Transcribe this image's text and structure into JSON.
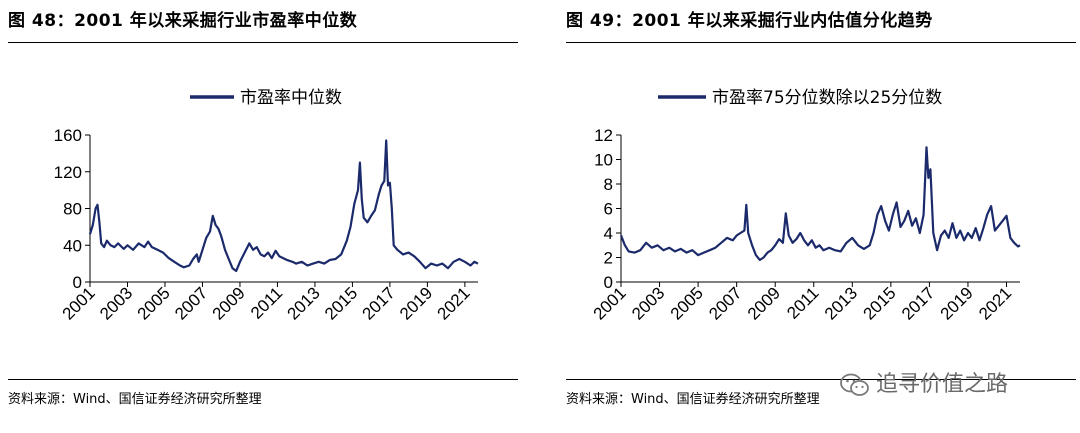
{
  "panels": [
    {
      "title": "图 48：2001 年以来采掘行业市盈率中位数",
      "source": "资料来源：Wind、国信证券经济研究所整理"
    },
    {
      "title": "图 49：2001 年以来采掘行业内估值分化趋势",
      "source": "资料来源：Wind、国信证券经济研究所整理"
    }
  ],
  "watermark": "追寻价值之路",
  "colors": {
    "series": "#1b2a6b",
    "text": "#000000"
  },
  "chart_data": [
    {
      "type": "line",
      "legend": [
        "市盈率中位数"
      ],
      "legend_position": "top-center",
      "grid": false,
      "xlim": [
        2001,
        2021.7
      ],
      "ylim": [
        0,
        160
      ],
      "yticks": [
        0,
        40,
        80,
        120,
        160
      ],
      "xticks": [
        "2001",
        "2003",
        "2005",
        "2007",
        "2009",
        "2011",
        "2013",
        "2015",
        "2017",
        "2019",
        "2021"
      ],
      "series": [
        {
          "name": "市盈率中位数",
          "points": [
            [
              2001.0,
              52
            ],
            [
              2001.15,
              62
            ],
            [
              2001.3,
              80
            ],
            [
              2001.4,
              84
            ],
            [
              2001.5,
              65
            ],
            [
              2001.6,
              42
            ],
            [
              2001.75,
              38
            ],
            [
              2001.9,
              45
            ],
            [
              2002.1,
              40
            ],
            [
              2002.3,
              38
            ],
            [
              2002.5,
              42
            ],
            [
              2002.8,
              36
            ],
            [
              2003.0,
              40
            ],
            [
              2003.3,
              35
            ],
            [
              2003.6,
              42
            ],
            [
              2003.9,
              38
            ],
            [
              2004.1,
              44
            ],
            [
              2004.3,
              38
            ],
            [
              2004.6,
              35
            ],
            [
              2004.9,
              32
            ],
            [
              2005.2,
              26
            ],
            [
              2005.5,
              22
            ],
            [
              2005.8,
              18
            ],
            [
              2006.0,
              16
            ],
            [
              2006.3,
              18
            ],
            [
              2006.5,
              25
            ],
            [
              2006.7,
              30
            ],
            [
              2006.8,
              22
            ],
            [
              2007.0,
              35
            ],
            [
              2007.2,
              48
            ],
            [
              2007.4,
              55
            ],
            [
              2007.55,
              72
            ],
            [
              2007.7,
              62
            ],
            [
              2007.85,
              58
            ],
            [
              2008.0,
              50
            ],
            [
              2008.2,
              35
            ],
            [
              2008.4,
              25
            ],
            [
              2008.6,
              15
            ],
            [
              2008.8,
              12
            ],
            [
              2009.0,
              22
            ],
            [
              2009.2,
              30
            ],
            [
              2009.4,
              38
            ],
            [
              2009.5,
              42
            ],
            [
              2009.7,
              35
            ],
            [
              2009.9,
              38
            ],
            [
              2010.1,
              30
            ],
            [
              2010.3,
              28
            ],
            [
              2010.5,
              32
            ],
            [
              2010.7,
              26
            ],
            [
              2010.9,
              34
            ],
            [
              2011.1,
              28
            ],
            [
              2011.3,
              26
            ],
            [
              2011.5,
              24
            ],
            [
              2011.8,
              22
            ],
            [
              2012.0,
              20
            ],
            [
              2012.3,
              22
            ],
            [
              2012.6,
              18
            ],
            [
              2012.9,
              20
            ],
            [
              2013.2,
              22
            ],
            [
              2013.5,
              20
            ],
            [
              2013.8,
              24
            ],
            [
              2014.1,
              25
            ],
            [
              2014.4,
              30
            ],
            [
              2014.7,
              45
            ],
            [
              2014.9,
              60
            ],
            [
              2015.1,
              85
            ],
            [
              2015.3,
              100
            ],
            [
              2015.4,
              130
            ],
            [
              2015.5,
              90
            ],
            [
              2015.6,
              70
            ],
            [
              2015.8,
              65
            ],
            [
              2016.0,
              72
            ],
            [
              2016.2,
              78
            ],
            [
              2016.4,
              95
            ],
            [
              2016.55,
              105
            ],
            [
              2016.7,
              110
            ],
            [
              2016.8,
              154
            ],
            [
              2016.9,
              105
            ],
            [
              2017.0,
              108
            ],
            [
              2017.1,
              80
            ],
            [
              2017.2,
              40
            ],
            [
              2017.4,
              35
            ],
            [
              2017.7,
              30
            ],
            [
              2018.0,
              32
            ],
            [
              2018.3,
              28
            ],
            [
              2018.6,
              22
            ],
            [
              2018.9,
              15
            ],
            [
              2019.2,
              20
            ],
            [
              2019.5,
              18
            ],
            [
              2019.8,
              20
            ],
            [
              2020.1,
              15
            ],
            [
              2020.4,
              22
            ],
            [
              2020.7,
              25
            ],
            [
              2021.0,
              22
            ],
            [
              2021.3,
              18
            ],
            [
              2021.5,
              22
            ],
            [
              2021.7,
              20
            ]
          ]
        }
      ]
    },
    {
      "type": "line",
      "legend": [
        "市盈率75分位数除以25分位数"
      ],
      "legend_position": "top-center",
      "grid": false,
      "xlim": [
        2001,
        2021.7
      ],
      "ylim": [
        0,
        12
      ],
      "yticks": [
        0,
        2,
        4,
        6,
        8,
        10,
        12
      ],
      "xticks": [
        "2001",
        "2003",
        "2005",
        "2007",
        "2009",
        "2011",
        "2013",
        "2015",
        "2017",
        "2019",
        "2021"
      ],
      "series": [
        {
          "name": "市盈率75分位数除以25分位数",
          "points": [
            [
              2001.0,
              3.8
            ],
            [
              2001.2,
              3.0
            ],
            [
              2001.4,
              2.5
            ],
            [
              2001.7,
              2.4
            ],
            [
              2002.0,
              2.6
            ],
            [
              2002.3,
              3.2
            ],
            [
              2002.6,
              2.8
            ],
            [
              2002.9,
              3.0
            ],
            [
              2003.2,
              2.6
            ],
            [
              2003.5,
              2.8
            ],
            [
              2003.8,
              2.5
            ],
            [
              2004.1,
              2.7
            ],
            [
              2004.4,
              2.4
            ],
            [
              2004.7,
              2.6
            ],
            [
              2005.0,
              2.2
            ],
            [
              2005.3,
              2.4
            ],
            [
              2005.6,
              2.6
            ],
            [
              2005.9,
              2.8
            ],
            [
              2006.2,
              3.2
            ],
            [
              2006.5,
              3.6
            ],
            [
              2006.8,
              3.4
            ],
            [
              2007.0,
              3.8
            ],
            [
              2007.2,
              4.0
            ],
            [
              2007.4,
              4.2
            ],
            [
              2007.5,
              6.3
            ],
            [
              2007.6,
              4.0
            ],
            [
              2007.8,
              3.0
            ],
            [
              2008.0,
              2.2
            ],
            [
              2008.2,
              1.8
            ],
            [
              2008.4,
              2.0
            ],
            [
              2008.6,
              2.4
            ],
            [
              2008.8,
              2.6
            ],
            [
              2009.0,
              3.0
            ],
            [
              2009.2,
              3.5
            ],
            [
              2009.4,
              3.2
            ],
            [
              2009.55,
              5.6
            ],
            [
              2009.7,
              3.8
            ],
            [
              2009.9,
              3.2
            ],
            [
              2010.1,
              3.5
            ],
            [
              2010.3,
              4.0
            ],
            [
              2010.5,
              3.4
            ],
            [
              2010.7,
              3.0
            ],
            [
              2010.9,
              3.4
            ],
            [
              2011.1,
              2.8
            ],
            [
              2011.3,
              3.0
            ],
            [
              2011.5,
              2.6
            ],
            [
              2011.8,
              2.8
            ],
            [
              2012.1,
              2.6
            ],
            [
              2012.4,
              2.5
            ],
            [
              2012.7,
              3.2
            ],
            [
              2013.0,
              3.6
            ],
            [
              2013.3,
              3.0
            ],
            [
              2013.6,
              2.7
            ],
            [
              2013.9,
              3.0
            ],
            [
              2014.1,
              4.0
            ],
            [
              2014.3,
              5.5
            ],
            [
              2014.5,
              6.2
            ],
            [
              2014.7,
              5.0
            ],
            [
              2014.9,
              4.2
            ],
            [
              2015.1,
              5.5
            ],
            [
              2015.3,
              6.5
            ],
            [
              2015.5,
              4.5
            ],
            [
              2015.7,
              5.0
            ],
            [
              2015.9,
              5.8
            ],
            [
              2016.1,
              4.6
            ],
            [
              2016.3,
              5.2
            ],
            [
              2016.5,
              4.0
            ],
            [
              2016.7,
              5.5
            ],
            [
              2016.85,
              11.0
            ],
            [
              2016.95,
              8.5
            ],
            [
              2017.05,
              9.2
            ],
            [
              2017.2,
              4.0
            ],
            [
              2017.4,
              2.6
            ],
            [
              2017.6,
              3.8
            ],
            [
              2017.8,
              4.2
            ],
            [
              2018.0,
              3.6
            ],
            [
              2018.2,
              4.8
            ],
            [
              2018.4,
              3.6
            ],
            [
              2018.6,
              4.2
            ],
            [
              2018.8,
              3.4
            ],
            [
              2019.0,
              4.0
            ],
            [
              2019.2,
              3.6
            ],
            [
              2019.4,
              4.4
            ],
            [
              2019.6,
              3.4
            ],
            [
              2019.8,
              4.4
            ],
            [
              2020.0,
              5.5
            ],
            [
              2020.2,
              6.2
            ],
            [
              2020.4,
              4.2
            ],
            [
              2020.6,
              4.6
            ],
            [
              2020.8,
              5.0
            ],
            [
              2021.0,
              5.4
            ],
            [
              2021.2,
              3.6
            ],
            [
              2021.4,
              3.2
            ],
            [
              2021.6,
              2.9
            ],
            [
              2021.7,
              3.0
            ]
          ]
        }
      ]
    }
  ]
}
